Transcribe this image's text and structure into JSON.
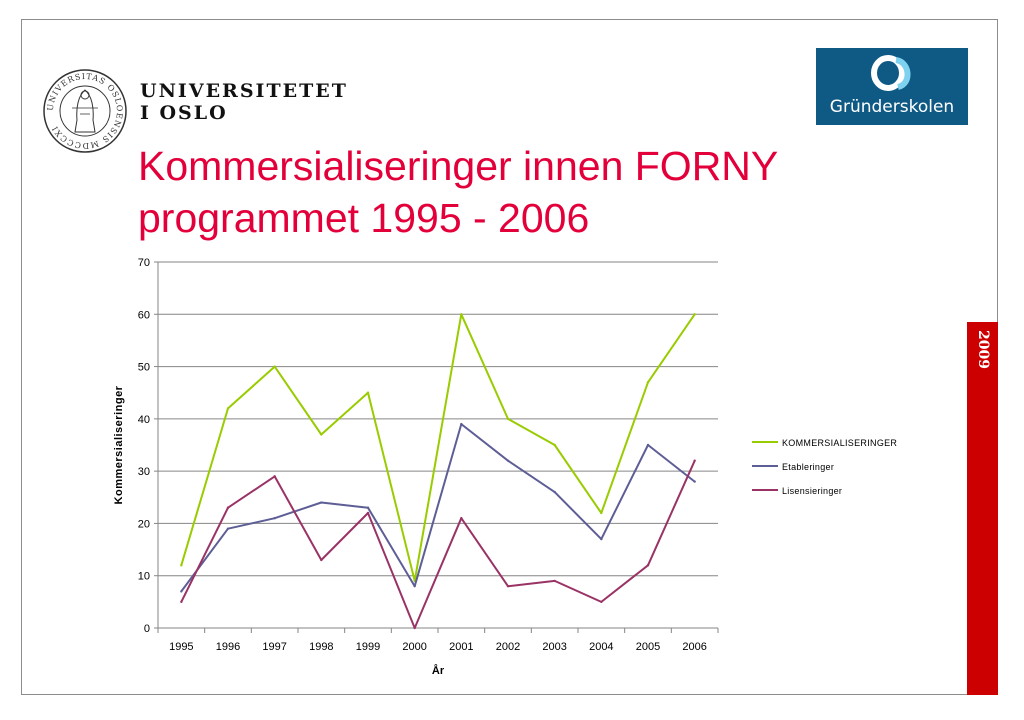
{
  "header": {
    "university_line1": "UNIVERSITETET",
    "university_line2": "I OSLO",
    "seal_text": "UNIVERSITAS OSLOENSIS MDCCCXI",
    "logo_text": "Gründerskolen",
    "logo_color": "#0e5a85"
  },
  "title_line1": "Kommersialiseringer innen FORNY",
  "title_line2": "programmet 1995 - 2006",
  "title_color": "#e3003a",
  "side_label": "2009",
  "side_color": "#cc0000",
  "chart_data": {
    "type": "line",
    "x": [
      "1995",
      "1996",
      "1997",
      "1998",
      "1999",
      "2000",
      "2001",
      "2002",
      "2003",
      "2004",
      "2005",
      "2006"
    ],
    "xlabel": "År",
    "ylabel": "Kommersialiseringer",
    "ylim": [
      0,
      70
    ],
    "yticks": [
      "0",
      "10",
      "20",
      "30",
      "40",
      "50",
      "60",
      "70"
    ],
    "grid": true,
    "legend_position": "right",
    "series": [
      {
        "name": "KOMMERSIALISERINGER",
        "color": "#99cc00",
        "values": [
          12,
          42,
          50,
          37,
          45,
          9,
          60,
          40,
          35,
          22,
          47,
          60
        ]
      },
      {
        "name": "Etableringer",
        "color": "#5e5e96",
        "values": [
          7,
          19,
          21,
          24,
          23,
          8,
          39,
          32,
          26,
          17,
          35,
          28
        ]
      },
      {
        "name": "Lisensieringer",
        "color": "#993366",
        "values": [
          5,
          23,
          29,
          13,
          22,
          0,
          21,
          8,
          9,
          5,
          12,
          32
        ]
      }
    ]
  }
}
